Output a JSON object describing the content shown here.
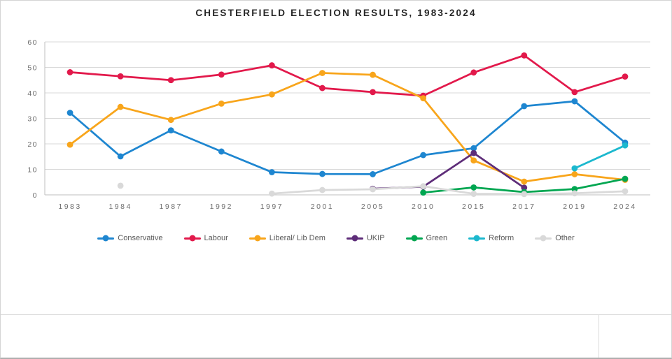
{
  "page": {
    "title": "CHESTERFIELD ELECTION RESULTS, 1983-2024"
  },
  "colors": {
    "grid": "#D9D9D9",
    "axis": "#BFBFBF",
    "tick_text": "#6E6E6E",
    "title_text": "#262626",
    "legend_text": "#595959",
    "page_border": "#D4D4D4",
    "sheet_gridline": "#DCDCDC"
  },
  "chart_data": {
    "type": "line",
    "title": "CHESTERFIELD ELECTION RESULTS, 1983-2024",
    "xlabel": "",
    "ylabel": "",
    "ylim": [
      0,
      60
    ],
    "yticks": [
      0,
      10,
      20,
      30,
      40,
      50,
      60
    ],
    "grid": true,
    "legend_position": "bottom",
    "categories": [
      "1983",
      "1984",
      "1987",
      "1992",
      "1997",
      "2001",
      "2005",
      "2010",
      "2015",
      "2017",
      "2019",
      "2024"
    ],
    "series": [
      {
        "name": "Conservative",
        "color": "#1E86D0",
        "values": [
          32.2,
          15.1,
          25.3,
          17.0,
          8.9,
          8.2,
          8.1,
          15.6,
          18.3,
          34.8,
          36.7,
          20.5
        ]
      },
      {
        "name": "Labour",
        "color": "#E2194B",
        "values": [
          48.1,
          46.5,
          45.0,
          47.2,
          50.8,
          41.9,
          40.3,
          38.9,
          48.0,
          54.7,
          40.3,
          46.4
        ]
      },
      {
        "name": "Liberal/ Lib Dem",
        "color": "#F8A51B",
        "values": [
          19.7,
          34.5,
          29.4,
          35.8,
          39.4,
          47.8,
          47.1,
          37.9,
          13.5,
          5.2,
          8.1,
          5.9
        ]
      },
      {
        "name": "UKIP",
        "color": "#5E2D79",
        "values": [
          null,
          null,
          null,
          null,
          null,
          null,
          2.4,
          3.2,
          16.4,
          2.8,
          null,
          null
        ]
      },
      {
        "name": "Green",
        "color": "#00A651",
        "values": [
          null,
          null,
          null,
          null,
          null,
          null,
          null,
          0.9,
          2.9,
          1.1,
          2.3,
          6.3
        ]
      },
      {
        "name": "Reform",
        "color": "#1CB8CE",
        "values": [
          null,
          null,
          null,
          null,
          null,
          null,
          null,
          null,
          null,
          null,
          10.4,
          19.4
        ]
      },
      {
        "name": "Other",
        "color": "#D9D9D9",
        "values": [
          null,
          3.6,
          null,
          null,
          0.5,
          1.9,
          2.2,
          3.4,
          0.4,
          0.3,
          0.6,
          1.4
        ]
      }
    ]
  }
}
